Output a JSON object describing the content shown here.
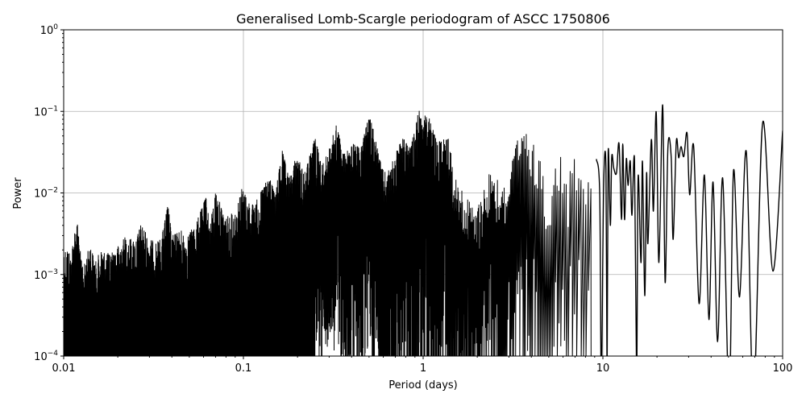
{
  "chart_data": {
    "type": "line",
    "title": "Generalised Lomb-Scargle periodogram of ASCC 1750806",
    "xlabel": "Period (days)",
    "ylabel": "Power",
    "xscale": "log",
    "yscale": "log",
    "xlim": [
      0.01,
      100
    ],
    "ylim": [
      0.0001,
      1
    ],
    "grid": true,
    "line_color": "#000000",
    "grid_color": "#b0b0b0",
    "xticks": [
      {
        "value": 0.01,
        "label": "0.01"
      },
      {
        "value": 0.1,
        "label": "0.1"
      },
      {
        "value": 1,
        "label": "1"
      },
      {
        "value": 10,
        "label": "10"
      },
      {
        "value": 100,
        "label": "100"
      }
    ],
    "yticks": [
      {
        "value": 0.0001,
        "base": "10",
        "exp": "−4"
      },
      {
        "value": 0.001,
        "base": "10",
        "exp": "−3"
      },
      {
        "value": 0.01,
        "base": "10",
        "exp": "−2"
      },
      {
        "value": 0.1,
        "base": "10",
        "exp": "−1"
      },
      {
        "value": 1,
        "base": "10",
        "exp": "0"
      }
    ],
    "dense_region_peak_envelope": [
      [
        0.01,
        0.002
      ],
      [
        0.0105,
        0.0021
      ],
      [
        0.011,
        0.0017
      ],
      [
        0.0115,
        0.0036
      ],
      [
        0.012,
        0.0043
      ],
      [
        0.0125,
        0.0015
      ],
      [
        0.013,
        0.0013
      ],
      [
        0.014,
        0.0024
      ],
      [
        0.015,
        0.0014
      ],
      [
        0.016,
        0.002
      ],
      [
        0.018,
        0.0018
      ],
      [
        0.02,
        0.0022
      ],
      [
        0.022,
        0.0029
      ],
      [
        0.025,
        0.0026
      ],
      [
        0.027,
        0.0042
      ],
      [
        0.03,
        0.0027
      ],
      [
        0.033,
        0.0025
      ],
      [
        0.035,
        0.0028
      ],
      [
        0.038,
        0.0074
      ],
      [
        0.04,
        0.003
      ],
      [
        0.045,
        0.0035
      ],
      [
        0.048,
        0.0028
      ],
      [
        0.055,
        0.0045
      ],
      [
        0.062,
        0.009
      ],
      [
        0.065,
        0.004
      ],
      [
        0.07,
        0.0104
      ],
      [
        0.08,
        0.005
      ],
      [
        0.09,
        0.006
      ],
      [
        0.098,
        0.0115
      ],
      [
        0.11,
        0.007
      ],
      [
        0.12,
        0.0085
      ],
      [
        0.14,
        0.0168
      ],
      [
        0.15,
        0.009
      ],
      [
        0.164,
        0.034
      ],
      [
        0.18,
        0.015
      ],
      [
        0.197,
        0.029
      ],
      [
        0.22,
        0.018
      ],
      [
        0.25,
        0.048
      ],
      [
        0.275,
        0.022
      ],
      [
        0.3,
        0.035
      ],
      [
        0.33,
        0.072
      ],
      [
        0.36,
        0.03
      ],
      [
        0.41,
        0.04
      ],
      [
        0.45,
        0.035
      ],
      [
        0.5,
        0.09
      ],
      [
        0.53,
        0.06
      ],
      [
        0.59,
        0.02
      ],
      [
        0.63,
        0.017
      ],
      [
        0.7,
        0.03
      ],
      [
        0.77,
        0.048
      ],
      [
        0.85,
        0.035
      ],
      [
        0.95,
        0.108
      ],
      [
        1.0,
        0.06
      ],
      [
        1.04,
        0.113
      ],
      [
        1.2,
        0.04
      ],
      [
        1.37,
        0.057
      ],
      [
        1.5,
        0.0155
      ],
      [
        1.76,
        0.0085
      ],
      [
        1.96,
        0.006
      ],
      [
        2.2,
        0.0125
      ],
      [
        2.4,
        0.021
      ],
      [
        2.6,
        0.015
      ],
      [
        2.9,
        0.0125
      ],
      [
        3.35,
        0.046
      ],
      [
        3.8,
        0.054
      ],
      [
        4.4,
        0.031
      ],
      [
        4.9,
        0.0085
      ],
      [
        5.2,
        0.02
      ],
      [
        5.8,
        0.029
      ],
      [
        6.4,
        0.015
      ],
      [
        6.9,
        0.027
      ],
      [
        7.2,
        0.041
      ],
      [
        7.6,
        0.02
      ],
      [
        8.2,
        0.027
      ],
      [
        8.8,
        0.02
      ]
    ],
    "resolved_curve": [
      [
        9.2,
        0.026
      ],
      [
        9.6,
        0.0099
      ],
      [
        9.8,
        5e-05
      ],
      [
        10.1,
        0.012
      ],
      [
        10.4,
        0.0195
      ],
      [
        10.55,
        5e-05
      ],
      [
        10.7,
        0.031
      ],
      [
        11.0,
        0.004
      ],
      [
        11.2,
        0.0275
      ],
      [
        11.5,
        0.02
      ],
      [
        11.9,
        0.0175
      ],
      [
        12.3,
        0.04
      ],
      [
        12.7,
        0.0047
      ],
      [
        12.9,
        0.04
      ],
      [
        13.2,
        0.0047
      ],
      [
        13.5,
        0.026
      ],
      [
        13.8,
        0.0124
      ],
      [
        14.2,
        0.0245
      ],
      [
        14.5,
        0.0053
      ],
      [
        15.0,
        0.0245
      ],
      [
        15.4,
        5e-05
      ],
      [
        15.7,
        0.0155
      ],
      [
        16.3,
        0.0014
      ],
      [
        16.6,
        0.0245
      ],
      [
        17.1,
        0.00055
      ],
      [
        17.5,
        0.0175
      ],
      [
        17.8,
        0.0024
      ],
      [
        18.6,
        0.045
      ],
      [
        19.1,
        0.006
      ],
      [
        19.8,
        0.098
      ],
      [
        20.5,
        0.0014
      ],
      [
        21.5,
        0.12
      ],
      [
        22.2,
        0.0008
      ],
      [
        23.0,
        0.036
      ],
      [
        24.0,
        0.027
      ],
      [
        24.6,
        0.0027
      ],
      [
        25.6,
        0.042
      ],
      [
        26.4,
        0.027
      ],
      [
        27.2,
        0.037
      ],
      [
        28.2,
        0.028
      ],
      [
        29.4,
        0.054
      ],
      [
        30.4,
        0.0095
      ],
      [
        32,
        0.037
      ],
      [
        34.3,
        0.00044
      ],
      [
        36.7,
        0.0166
      ],
      [
        38.9,
        0.00028
      ],
      [
        41.0,
        0.0136
      ],
      [
        43.5,
        0.00015
      ],
      [
        46.4,
        0.0152
      ],
      [
        50.4,
        3e-05
      ],
      [
        53.3,
        0.0187
      ],
      [
        57.6,
        0.00053
      ],
      [
        62.8,
        0.032
      ],
      [
        68.9,
        3e-05
      ],
      [
        77.4,
        0.072
      ],
      [
        88.3,
        0.0011
      ],
      [
        100,
        0.058
      ]
    ]
  }
}
